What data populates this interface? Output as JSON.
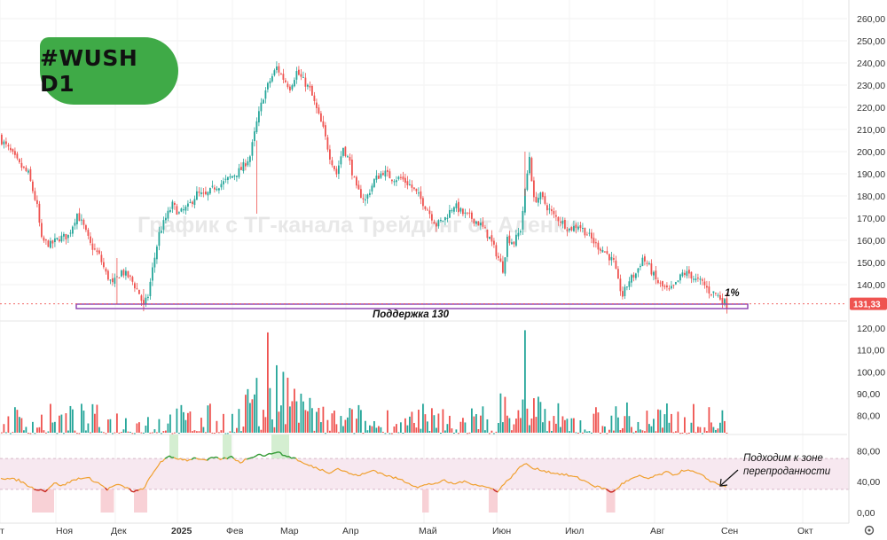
{
  "badge": {
    "text": "#WUSH D1",
    "color": "#3faa47"
  },
  "watermark": "График с ТГ-канала Трейдинг от Аленки",
  "annotations": {
    "support_label": "Поддержка 130",
    "percent_label": "1%",
    "rsi_note_line1": "Подходим к зоне",
    "rsi_note_line2": "перепроданности"
  },
  "colors": {
    "up": "#26a69a",
    "down": "#ef5350",
    "rsi_line": "#f0a030",
    "rsi_band": "#f7e8f0",
    "support_box": "#8a3fb0",
    "price_tag": "#ef5350"
  },
  "chart_data": [
    {
      "type": "candlestick",
      "price_axis": {
        "ticks": [
          "260,00",
          "250,00",
          "240,00",
          "230,00",
          "220,00",
          "210,00",
          "200,00",
          "190,00",
          "180,00",
          "170,00",
          "160,00",
          "150,00",
          "140,00"
        ],
        "range": [
          127,
          265
        ]
      },
      "last_price": "131,33",
      "support_level": 130,
      "time_axis": [
        "т",
        "Ноя",
        "Дек",
        "2025",
        "Фев",
        "Мар",
        "Апр",
        "Май",
        "Июн",
        "Июл",
        "Авг",
        "Сен",
        "Окт"
      ],
      "ohlc_anchor_closes": [
        [
          0,
          205
        ],
        [
          4,
          200
        ],
        [
          8,
          194
        ],
        [
          12,
          190
        ],
        [
          16,
          175
        ],
        [
          18,
          160
        ],
        [
          22,
          158
        ],
        [
          26,
          161
        ],
        [
          30,
          162
        ],
        [
          34,
          172
        ],
        [
          37,
          166
        ],
        [
          40,
          158
        ],
        [
          44,
          153
        ],
        [
          47,
          145
        ],
        [
          50,
          140
        ],
        [
          54,
          146
        ],
        [
          58,
          143
        ],
        [
          62,
          136
        ],
        [
          64,
          130
        ],
        [
          66,
          135
        ],
        [
          68,
          147
        ],
        [
          71,
          163
        ],
        [
          74,
          170
        ],
        [
          77,
          176
        ],
        [
          80,
          172
        ],
        [
          84,
          175
        ],
        [
          88,
          181
        ],
        [
          92,
          180
        ],
        [
          96,
          184
        ],
        [
          100,
          186
        ],
        [
          104,
          189
        ],
        [
          108,
          192
        ],
        [
          112,
          198
        ],
        [
          115,
          213
        ],
        [
          118,
          225
        ],
        [
          121,
          232
        ],
        [
          124,
          238
        ],
        [
          127,
          233
        ],
        [
          130,
          229
        ],
        [
          133,
          236
        ],
        [
          136,
          232
        ],
        [
          139,
          228
        ],
        [
          142,
          219
        ],
        [
          145,
          210
        ],
        [
          148,
          198
        ],
        [
          151,
          190
        ],
        [
          154,
          202
        ],
        [
          157,
          195
        ],
        [
          160,
          183
        ],
        [
          164,
          178
        ],
        [
          168,
          187
        ],
        [
          172,
          191
        ],
        [
          176,
          188
        ],
        [
          180,
          188
        ],
        [
          184,
          185
        ],
        [
          188,
          180
        ],
        [
          192,
          174
        ],
        [
          196,
          167
        ],
        [
          200,
          170
        ],
        [
          204,
          176
        ],
        [
          208,
          172
        ],
        [
          212,
          170
        ],
        [
          216,
          167
        ],
        [
          220,
          161
        ],
        [
          224,
          152
        ],
        [
          226,
          147
        ],
        [
          228,
          161
        ],
        [
          231,
          159
        ],
        [
          234,
          165
        ],
        [
          236,
          182
        ],
        [
          238,
          198
        ],
        [
          240,
          178
        ],
        [
          243,
          180
        ],
        [
          246,
          175
        ],
        [
          249,
          171
        ],
        [
          252,
          169
        ],
        [
          256,
          165
        ],
        [
          260,
          167
        ],
        [
          264,
          163
        ],
        [
          268,
          158
        ],
        [
          272,
          155
        ],
        [
          276,
          150
        ],
        [
          278,
          141
        ],
        [
          280,
          135
        ],
        [
          283,
          142
        ],
        [
          286,
          145
        ],
        [
          289,
          152
        ],
        [
          292,
          148
        ],
        [
          295,
          142
        ],
        [
          298,
          139
        ],
        [
          301,
          137
        ],
        [
          304,
          140
        ],
        [
          307,
          145
        ],
        [
          310,
          145
        ],
        [
          313,
          142
        ],
        [
          316,
          141
        ],
        [
          319,
          137
        ],
        [
          322,
          136
        ],
        [
          325,
          133
        ],
        [
          327,
          131
        ]
      ]
    },
    {
      "type": "bar",
      "name": "volume",
      "axis_ticks": [
        "120,00",
        "110,00",
        "100,00",
        "90,00",
        "80,00"
      ],
      "range": [
        70,
        125
      ],
      "spikes": [
        [
          120,
          118
        ],
        [
          124,
          103
        ],
        [
          127,
          100
        ],
        [
          236,
          119
        ],
        [
          282,
          86
        ],
        [
          275,
          80
        ]
      ]
    },
    {
      "type": "line",
      "name": "RSI",
      "axis_ticks": [
        "80,00",
        "40,00",
        "0,00"
      ],
      "range": [
        0,
        90
      ],
      "band": [
        30,
        70
      ],
      "anchors": [
        [
          0,
          45
        ],
        [
          8,
          42
        ],
        [
          14,
          32
        ],
        [
          20,
          28
        ],
        [
          24,
          38
        ],
        [
          28,
          35
        ],
        [
          32,
          41
        ],
        [
          36,
          45
        ],
        [
          40,
          44
        ],
        [
          44,
          38
        ],
        [
          48,
          30
        ],
        [
          52,
          36
        ],
        [
          56,
          33
        ],
        [
          60,
          27
        ],
        [
          64,
          30
        ],
        [
          68,
          48
        ],
        [
          72,
          66
        ],
        [
          76,
          72
        ],
        [
          80,
          70
        ],
        [
          84,
          68
        ],
        [
          88,
          71
        ],
        [
          92,
          67
        ],
        [
          96,
          71
        ],
        [
          100,
          69
        ],
        [
          104,
          72
        ],
        [
          108,
          65
        ],
        [
          112,
          71
        ],
        [
          116,
          75
        ],
        [
          120,
          74
        ],
        [
          124,
          79
        ],
        [
          127,
          75
        ],
        [
          130,
          72
        ],
        [
          133,
          70
        ],
        [
          136,
          64
        ],
        [
          140,
          60
        ],
        [
          144,
          56
        ],
        [
          148,
          52
        ],
        [
          152,
          57
        ],
        [
          156,
          52
        ],
        [
          160,
          48
        ],
        [
          164,
          50
        ],
        [
          168,
          55
        ],
        [
          172,
          50
        ],
        [
          176,
          46
        ],
        [
          180,
          43
        ],
        [
          184,
          38
        ],
        [
          188,
          33
        ],
        [
          192,
          36
        ],
        [
          196,
          38
        ],
        [
          200,
          41
        ],
        [
          204,
          37
        ],
        [
          208,
          40
        ],
        [
          212,
          38
        ],
        [
          216,
          35
        ],
        [
          220,
          32
        ],
        [
          224,
          28
        ],
        [
          228,
          40
        ],
        [
          232,
          52
        ],
        [
          236,
          64
        ],
        [
          240,
          57
        ],
        [
          244,
          55
        ],
        [
          248,
          52
        ],
        [
          252,
          50
        ],
        [
          256,
          48
        ],
        [
          260,
          45
        ],
        [
          264,
          40
        ],
        [
          268,
          34
        ],
        [
          272,
          31
        ],
        [
          276,
          26
        ],
        [
          280,
          37
        ],
        [
          284,
          43
        ],
        [
          288,
          47
        ],
        [
          292,
          44
        ],
        [
          296,
          48
        ],
        [
          300,
          52
        ],
        [
          304,
          49
        ],
        [
          308,
          55
        ],
        [
          312,
          53
        ],
        [
          316,
          48
        ],
        [
          320,
          41
        ],
        [
          324,
          36
        ],
        [
          327,
          34
        ]
      ],
      "highlight_low": [
        [
          14,
          24
        ],
        [
          45,
          51
        ],
        [
          60,
          66
        ],
        [
          190,
          193
        ],
        [
          220,
          224
        ],
        [
          273,
          277
        ]
      ],
      "highlight_high": [
        [
          76,
          80
        ],
        [
          100,
          104
        ],
        [
          122,
          130
        ]
      ]
    }
  ]
}
